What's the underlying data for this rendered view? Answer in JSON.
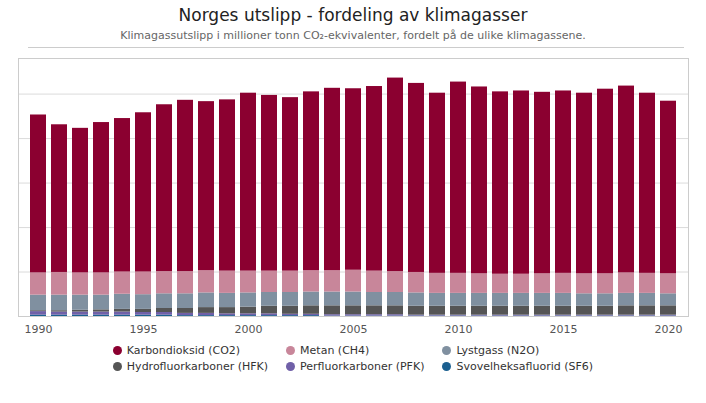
{
  "chart_data": {
    "type": "bar",
    "title": "Norges utslipp - fordeling av klimagasser",
    "subtitle": "Klimagassutslipp i millioner tonn CO₂-ekvivalenter, fordelt på de ulike klimagassene.",
    "stacked": true,
    "categories": [
      "1990",
      null,
      null,
      null,
      null,
      "1995",
      null,
      null,
      null,
      null,
      "2000",
      null,
      null,
      null,
      null,
      "2005",
      null,
      null,
      null,
      null,
      "2010",
      null,
      null,
      null,
      null,
      "2015",
      null,
      null,
      null,
      null,
      "2020"
    ],
    "series": [
      {
        "name": "Svovelheksafluorid (SF6)",
        "color": "#1B6090",
        "values": [
          0.3,
          0.3,
          0.3,
          0.3,
          0.3,
          0.3,
          0.3,
          0.2,
          0.2,
          0.2,
          0.2,
          0.2,
          0.2,
          0.2,
          0.1,
          0.1,
          0.1,
          0.1,
          0.1,
          0.1,
          0.1,
          0.1,
          0.1,
          0.1,
          0.1,
          0.1,
          0.1,
          0.1,
          0.1,
          0.1,
          0.1
        ]
      },
      {
        "name": "Perfluorkarboner (PFK)",
        "color": "#7060A8",
        "values": [
          0.8,
          0.7,
          0.7,
          0.7,
          0.7,
          0.6,
          0.6,
          0.5,
          0.5,
          0.4,
          0.4,
          0.4,
          0.3,
          0.3,
          0.3,
          0.3,
          0.3,
          0.3,
          0.2,
          0.2,
          0.2,
          0.2,
          0.2,
          0.2,
          0.2,
          0.2,
          0.2,
          0.2,
          0.2,
          0.2,
          0.2
        ]
      },
      {
        "name": "Hydrofluorkarboner (HFK)",
        "color": "#555555",
        "values": [
          0.2,
          0.3,
          0.4,
          0.5,
          0.6,
          0.7,
          0.9,
          1.1,
          1.3,
          1.4,
          1.5,
          1.7,
          1.8,
          1.9,
          2.0,
          2.0,
          2.0,
          2.0,
          2.0,
          2.0,
          2.0,
          2.0,
          2.0,
          2.0,
          2.0,
          2.0,
          2.0,
          2.0,
          2.1,
          2.1,
          2.1
        ]
      },
      {
        "name": "Lystgass (N2O)",
        "color": "#8090A0",
        "values": [
          3.5,
          3.5,
          3.4,
          3.3,
          3.4,
          3.3,
          3.3,
          3.3,
          3.3,
          3.2,
          3.2,
          3.1,
          3.1,
          3.1,
          3.1,
          3.1,
          3.0,
          3.0,
          3.0,
          2.9,
          2.9,
          2.9,
          2.9,
          2.9,
          2.9,
          2.9,
          2.8,
          2.8,
          2.8,
          2.8,
          2.7
        ]
      },
      {
        "name": "Metan (CH4)",
        "color": "#C8869A",
        "values": [
          5.0,
          5.1,
          5.0,
          5.0,
          5.0,
          5.1,
          5.0,
          5.0,
          5.0,
          5.0,
          4.9,
          4.8,
          4.8,
          4.8,
          4.8,
          4.9,
          4.8,
          4.7,
          4.6,
          4.5,
          4.5,
          4.4,
          4.3,
          4.3,
          4.4,
          4.5,
          4.5,
          4.5,
          4.6,
          4.5,
          4.5
        ]
      },
      {
        "name": "Karbondioksid (CO2)",
        "color": "#8B0030",
        "values": [
          35.5,
          33.2,
          32.5,
          33.8,
          34.5,
          35.8,
          37.5,
          38.5,
          38.0,
          38.5,
          40.0,
          39.5,
          39.0,
          40.2,
          41.0,
          40.8,
          41.5,
          43.5,
          42.5,
          40.5,
          43.0,
          42.0,
          41.0,
          41.2,
          40.8,
          41.0,
          40.6,
          41.5,
          42.0,
          40.5,
          38.8
        ]
      }
    ],
    "ylim": [
      0,
      58
    ],
    "yticks": [
      10,
      20,
      30,
      40,
      50
    ],
    "grid": true,
    "tick_labels": "x"
  }
}
